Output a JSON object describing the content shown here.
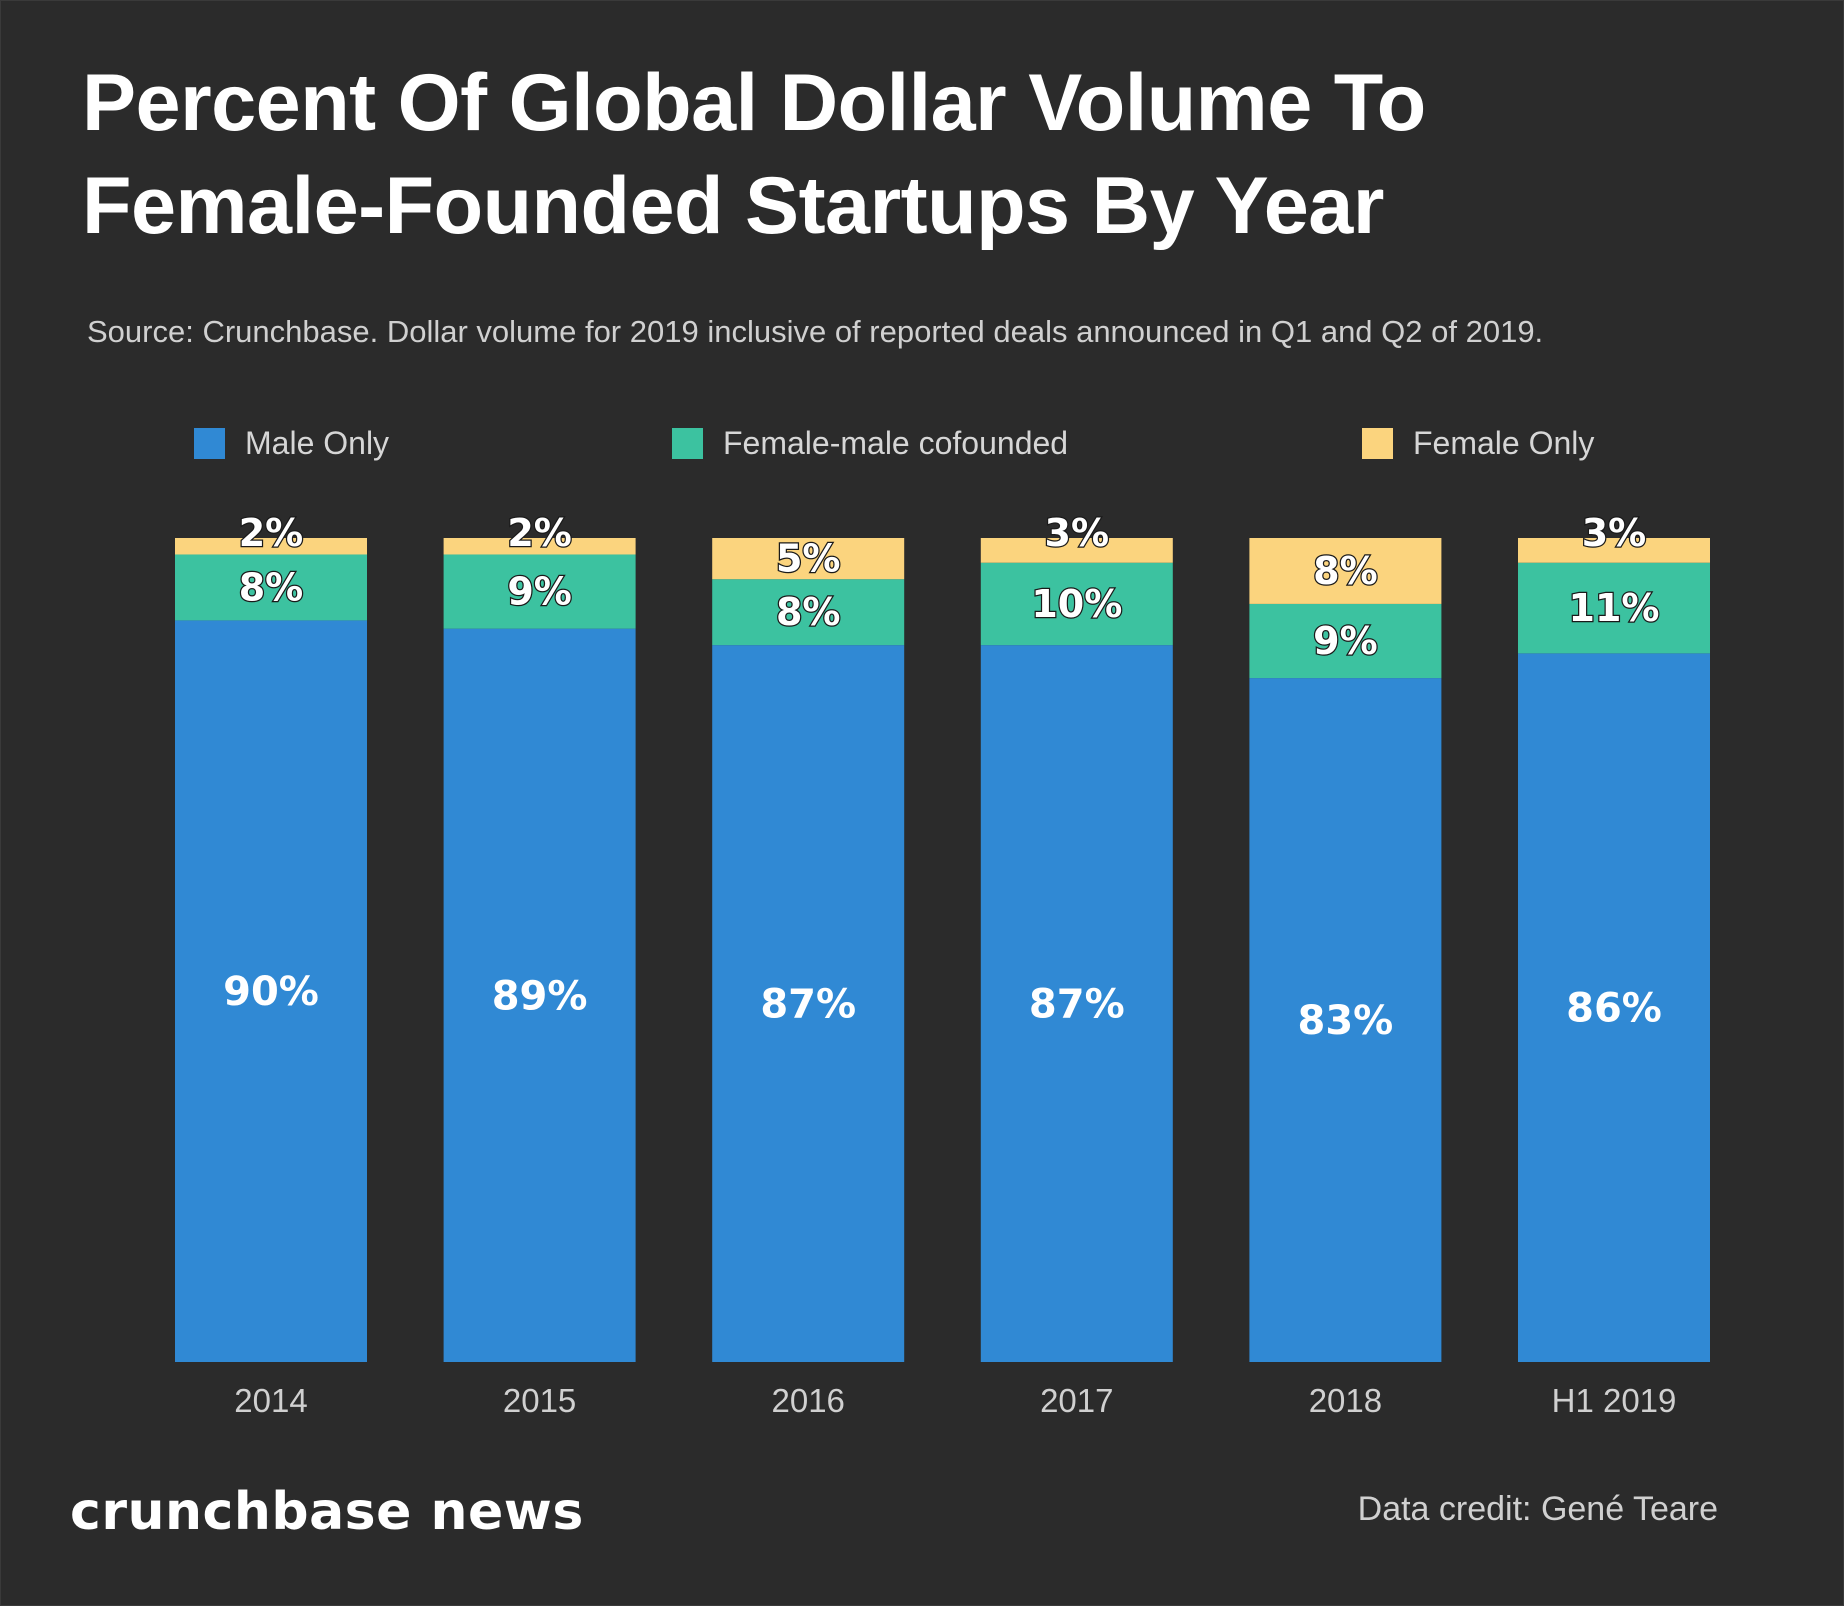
{
  "title_line1": "Percent Of Global Dollar Volume To",
  "title_line2": "Female-Founded Startups By Year",
  "source": "Source: Crunchbase. Dollar volume for 2019 inclusive of reported deals announced in Q1 and Q2 of 2019.",
  "brand": "crunchbase news",
  "credit": "Data credit: Gené Teare",
  "colors": {
    "background": "#2b2b2b",
    "male_only": "#3089d4",
    "female_male_cofounded": "#3cc2a0",
    "female_only": "#fbd47e"
  },
  "chart_data": {
    "type": "bar",
    "stacked": true,
    "categories": [
      "2014",
      "2015",
      "2016",
      "2017",
      "2018",
      "H1 2019"
    ],
    "series": [
      {
        "name": "Male Only",
        "color": "#3089d4",
        "values": [
          90,
          89,
          87,
          87,
          83,
          86
        ],
        "labels": [
          "90%",
          "89%",
          "87%",
          "87%",
          "83%",
          "86%"
        ]
      },
      {
        "name": "Female-male cofounded",
        "color": "#3cc2a0",
        "values": [
          8,
          9,
          8,
          10,
          9,
          11
        ],
        "labels": [
          "8%",
          "9%",
          "8%",
          "10%",
          "9%",
          "11%"
        ]
      },
      {
        "name": "Female Only",
        "color": "#fbd47e",
        "values": [
          2,
          2,
          5,
          3,
          8,
          3
        ],
        "labels": [
          "2%",
          "2%",
          "5%",
          "3%",
          "8%",
          "3%"
        ]
      }
    ],
    "title": "Percent Of Global Dollar Volume To Female-Founded Startups By Year",
    "xlabel": "",
    "ylabel": "",
    "ylim": [
      0,
      100
    ],
    "grid": false,
    "legend": "top"
  }
}
